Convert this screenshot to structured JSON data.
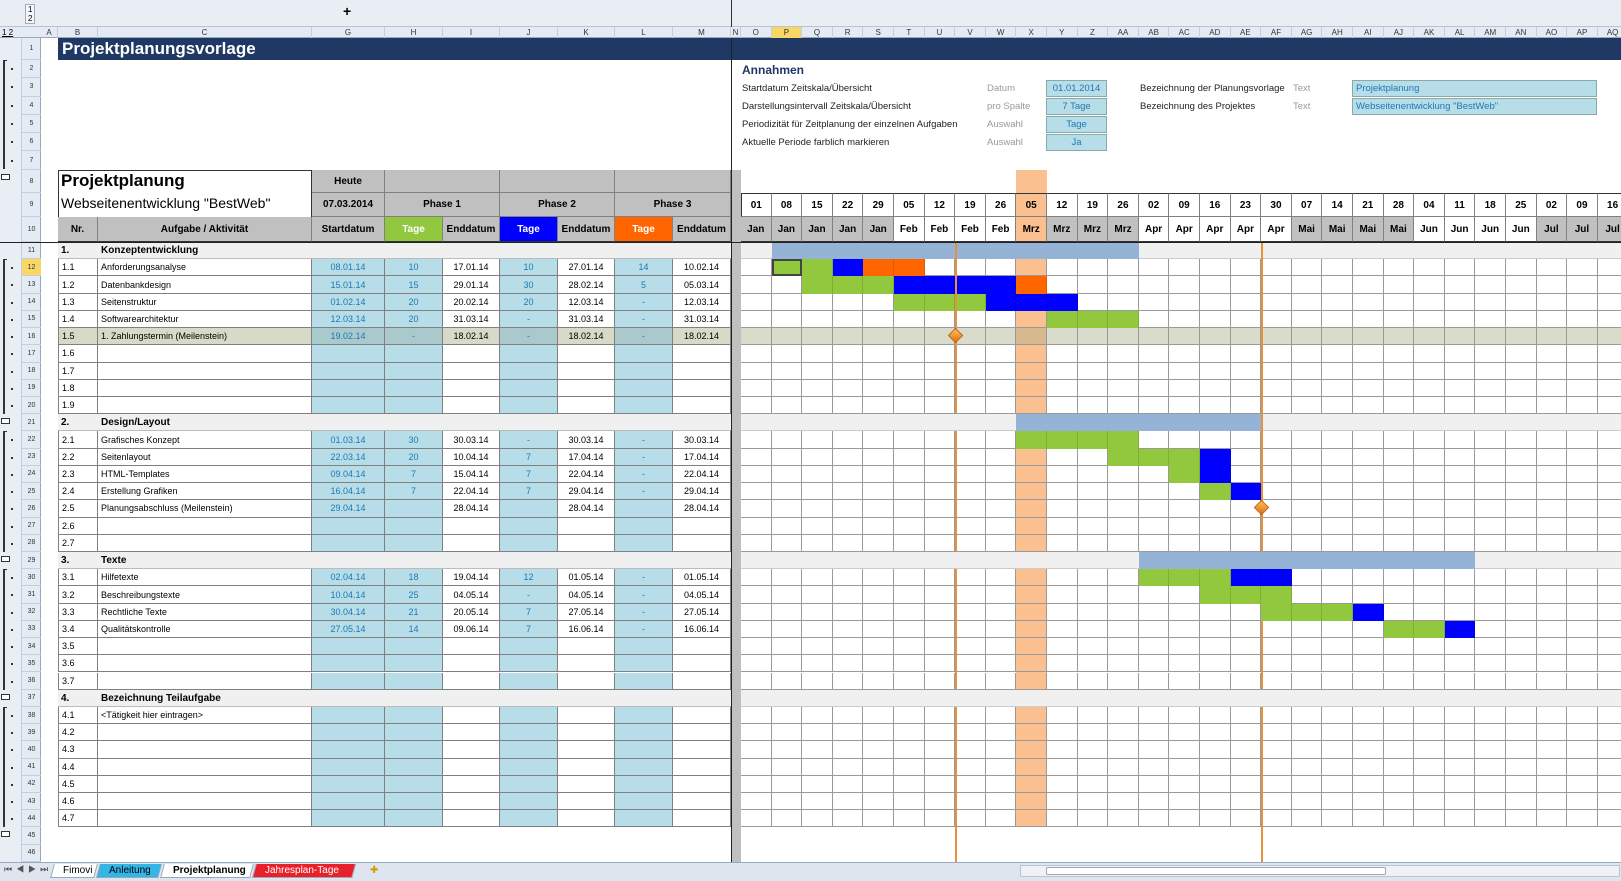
{
  "outline": {
    "levels_top": [
      "1",
      "2"
    ],
    "levels_left": "1 2",
    "expand_symbol": "+"
  },
  "columns": {
    "left": [
      "A",
      "B",
      "C",
      "G",
      "H",
      "I",
      "J",
      "K",
      "L",
      "M",
      "N"
    ],
    "gantt": [
      "O",
      "P",
      "Q",
      "R",
      "S",
      "T",
      "U",
      "V",
      "W",
      "X",
      "Y",
      "Z",
      "AA",
      "AB",
      "AC",
      "AD",
      "AE",
      "AF",
      "AG",
      "AH",
      "AI",
      "AJ",
      "AK",
      "AL",
      "AM",
      "AN",
      "AO",
      "AP",
      "AQ"
    ],
    "selected": "P"
  },
  "selected_row": 12,
  "sheet_title": "Projektplanungsvorlage",
  "assumptions": {
    "heading": "Annahmen",
    "items": [
      {
        "label": "Startdatum Zeitskala/Übersicht",
        "kind": "Datum",
        "value": "01.01.2014"
      },
      {
        "label": "Darstellungsintervall Zeitskala/Übersicht",
        "kind": "pro Spalte",
        "value": "7 Tage"
      },
      {
        "label": "Periodizität für Zeitplanung der einzelnen Aufgaben",
        "kind": "Auswahl",
        "value": "Tage"
      },
      {
        "label": "Aktuelle Periode farblich markieren",
        "kind": "Auswahl",
        "value": "Ja"
      }
    ],
    "text_items": [
      {
        "label": "Bezeichnung der Planungsvorlage",
        "kind": "Text",
        "value": "Projektplanung"
      },
      {
        "label": "Bezeichnung des Projektes",
        "kind": "Text",
        "value": "Webseitenentwicklung \"BestWeb\""
      }
    ]
  },
  "header": {
    "title": "Projektplanung",
    "subtitle": "Webseitenentwicklung \"BestWeb\"",
    "today_label": "Heute",
    "today_value": "07.03.2014",
    "phases": [
      "Phase 1",
      "Phase 2",
      "Phase 3"
    ],
    "col_nr": "Nr.",
    "col_task": "Aufgabe / Aktivität",
    "col_start": "Startdatum",
    "col_days": "Tage",
    "col_end": "Enddatum"
  },
  "colors": {
    "phase1": "#92c83e",
    "phase2": "#0000ff",
    "phase3": "#ff6600",
    "summary": "#95b3d7",
    "milestone": "#f0a040",
    "current": "#fac090",
    "input": "#b7dde8",
    "title_band": "#1f3864"
  },
  "timeline": {
    "days": [
      "01",
      "08",
      "15",
      "22",
      "29",
      "05",
      "12",
      "19",
      "26",
      "05",
      "12",
      "19",
      "26",
      "02",
      "09",
      "16",
      "23",
      "30",
      "07",
      "14",
      "21",
      "28",
      "04",
      "11",
      "18",
      "25",
      "02",
      "09",
      "16"
    ],
    "months": [
      "Jan",
      "Jan",
      "Jan",
      "Jan",
      "Jan",
      "Feb",
      "Feb",
      "Feb",
      "Feb",
      "Mrz",
      "Mrz",
      "Mrz",
      "Mrz",
      "Apr",
      "Apr",
      "Apr",
      "Apr",
      "Apr",
      "Mai",
      "Mai",
      "Mai",
      "Mai",
      "Jun",
      "Jun",
      "Jun",
      "Jun",
      "Jul",
      "Jul",
      "Jul"
    ],
    "current_week_index": 9
  },
  "rows": [
    {
      "row": 11,
      "type": "section",
      "nr": "1.",
      "task": "Konzeptentwicklung",
      "summary_weeks": [
        1,
        12
      ]
    },
    {
      "row": 12,
      "type": "task",
      "nr": "1.1",
      "task": "Anforderungsanalyse",
      "start": "08.01.14",
      "d1": "10",
      "e1": "17.01.14",
      "d2": "10",
      "e2": "27.01.14",
      "d3": "14",
      "e3": "10.02.14",
      "p1": [
        1,
        2
      ],
      "p2": [
        3,
        3
      ],
      "p3": [
        4,
        5
      ]
    },
    {
      "row": 13,
      "type": "task",
      "nr": "1.2",
      "task": "Datenbankdesign",
      "start": "15.01.14",
      "d1": "15",
      "e1": "29.01.14",
      "d2": "30",
      "e2": "28.02.14",
      "d3": "5",
      "e3": "05.03.14",
      "p1": [
        2,
        4
      ],
      "p2": [
        5,
        8
      ],
      "p3": [
        9,
        9
      ]
    },
    {
      "row": 14,
      "type": "task",
      "nr": "1.3",
      "task": "Seitenstruktur",
      "start": "01.02.14",
      "d1": "20",
      "e1": "20.02.14",
      "d2": "20",
      "e2": "12.03.14",
      "d3": "-",
      "e3": "12.03.14",
      "p1": [
        5,
        7
      ],
      "p2": [
        8,
        10
      ]
    },
    {
      "row": 15,
      "type": "task",
      "nr": "1.4",
      "task": "Softwarearchitektur",
      "start": "12.03.14",
      "d1": "20",
      "e1": "31.03.14",
      "d2": "-",
      "e2": "31.03.14",
      "d3": "-",
      "e3": "31.03.14",
      "p1": [
        10,
        12
      ]
    },
    {
      "row": 16,
      "type": "milestone",
      "nr": "1.5",
      "task": "1. Zahlungstermin (Meilenstein)",
      "start": "19.02.14",
      "d1": "-",
      "e1": "18.02.14",
      "d2": "-",
      "e2": "18.02.14",
      "d3": "-",
      "e3": "18.02.14",
      "milestone_after_week": 6
    },
    {
      "row": 17,
      "type": "task",
      "nr": "1.6",
      "task": ""
    },
    {
      "row": 18,
      "type": "task",
      "nr": "1.7",
      "task": ""
    },
    {
      "row": 19,
      "type": "task",
      "nr": "1.8",
      "task": ""
    },
    {
      "row": 20,
      "type": "task",
      "nr": "1.9",
      "task": ""
    },
    {
      "row": 21,
      "type": "section",
      "nr": "2.",
      "task": "Design/Layout",
      "summary_weeks": [
        9,
        16
      ]
    },
    {
      "row": 22,
      "type": "task",
      "nr": "2.1",
      "task": "Grafisches Konzept",
      "start": "01.03.14",
      "d1": "30",
      "e1": "30.03.14",
      "d2": "-",
      "e2": "30.03.14",
      "d3": "-",
      "e3": "30.03.14",
      "p1": [
        9,
        12
      ]
    },
    {
      "row": 23,
      "type": "task",
      "nr": "2.2",
      "task": "Seitenlayout",
      "start": "22.03.14",
      "d1": "20",
      "e1": "10.04.14",
      "d2": "7",
      "e2": "17.04.14",
      "d3": "-",
      "e3": "17.04.14",
      "p1": [
        12,
        14
      ],
      "p2": [
        15,
        15
      ]
    },
    {
      "row": 24,
      "type": "task",
      "nr": "2.3",
      "task": "HTML-Templates",
      "start": "09.04.14",
      "d1": "7",
      "e1": "15.04.14",
      "d2": "7",
      "e2": "22.04.14",
      "d3": "-",
      "e3": "22.04.14",
      "p1": [
        14,
        14
      ],
      "p2": [
        15,
        15
      ]
    },
    {
      "row": 25,
      "type": "task",
      "nr": "2.4",
      "task": "Erstellung Grafiken",
      "start": "16.04.14",
      "d1": "7",
      "e1": "22.04.14",
      "d2": "7",
      "e2": "29.04.14",
      "d3": "-",
      "e3": "29.04.14",
      "p1": [
        15,
        15
      ],
      "p2": [
        16,
        16
      ]
    },
    {
      "row": 26,
      "type": "task",
      "nr": "2.5",
      "task": "Planungsabschluss (Meilenstein)",
      "start": "29.04.14",
      "d1": "",
      "e1": "28.04.14",
      "d2": "",
      "e2": "28.04.14",
      "d3": "",
      "e3": "28.04.14",
      "milestone_after_week": 16
    },
    {
      "row": 27,
      "type": "task",
      "nr": "2.6",
      "task": ""
    },
    {
      "row": 28,
      "type": "task",
      "nr": "2.7",
      "task": ""
    },
    {
      "row": 29,
      "type": "section",
      "nr": "3.",
      "task": "Texte",
      "summary_weeks": [
        13,
        23
      ]
    },
    {
      "row": 30,
      "type": "task",
      "nr": "3.1",
      "task": "Hilfetexte",
      "start": "02.04.14",
      "d1": "18",
      "e1": "19.04.14",
      "d2": "12",
      "e2": "01.05.14",
      "d3": "-",
      "e3": "01.05.14",
      "p1": [
        13,
        15
      ],
      "p2": [
        16,
        17
      ]
    },
    {
      "row": 31,
      "type": "task",
      "nr": "3.2",
      "task": "Beschreibungstexte",
      "start": "10.04.14",
      "d1": "25",
      "e1": "04.05.14",
      "d2": "-",
      "e2": "04.05.14",
      "d3": "-",
      "e3": "04.05.14",
      "p1": [
        15,
        17
      ]
    },
    {
      "row": 32,
      "type": "task",
      "nr": "3.3",
      "task": "Rechtliche Texte",
      "start": "30.04.14",
      "d1": "21",
      "e1": "20.05.14",
      "d2": "7",
      "e2": "27.05.14",
      "d3": "-",
      "e3": "27.05.14",
      "p1": [
        17,
        19
      ],
      "p2": [
        20,
        20
      ]
    },
    {
      "row": 33,
      "type": "task",
      "nr": "3.4",
      "task": "Qualitätskontrolle",
      "start": "27.05.14",
      "d1": "14",
      "e1": "09.06.14",
      "d2": "7",
      "e2": "16.06.14",
      "d3": "-",
      "e3": "16.06.14",
      "p1": [
        21,
        22
      ],
      "p2": [
        23,
        23
      ]
    },
    {
      "row": 34,
      "type": "task",
      "nr": "3.5",
      "task": ""
    },
    {
      "row": 35,
      "type": "task",
      "nr": "3.6",
      "task": ""
    },
    {
      "row": 36,
      "type": "task",
      "nr": "3.7",
      "task": ""
    },
    {
      "row": 37,
      "type": "section",
      "nr": "4.",
      "task": "Bezeichnung Teilaufgabe"
    },
    {
      "row": 38,
      "type": "task",
      "nr": "4.1",
      "task": "<Tätigkeit hier eintragen>"
    },
    {
      "row": 39,
      "type": "task",
      "nr": "4.2",
      "task": ""
    },
    {
      "row": 40,
      "type": "task",
      "nr": "4.3",
      "task": ""
    },
    {
      "row": 41,
      "type": "task",
      "nr": "4.4",
      "task": ""
    },
    {
      "row": 42,
      "type": "task",
      "nr": "4.5",
      "task": ""
    },
    {
      "row": 43,
      "type": "task",
      "nr": "4.6",
      "task": ""
    },
    {
      "row": 44,
      "type": "task",
      "nr": "4.7",
      "task": ""
    }
  ],
  "sheet_tabs": [
    {
      "label": "Fimovi",
      "color": "#ffffff",
      "active": false
    },
    {
      "label": "Anleitung",
      "color": "#33b5e5",
      "active": false
    },
    {
      "label": "Projektplanung",
      "color": "#ffffff",
      "active": true
    },
    {
      "label": "Jahresplan-Tage",
      "color": "#e8202a",
      "active": false
    }
  ]
}
